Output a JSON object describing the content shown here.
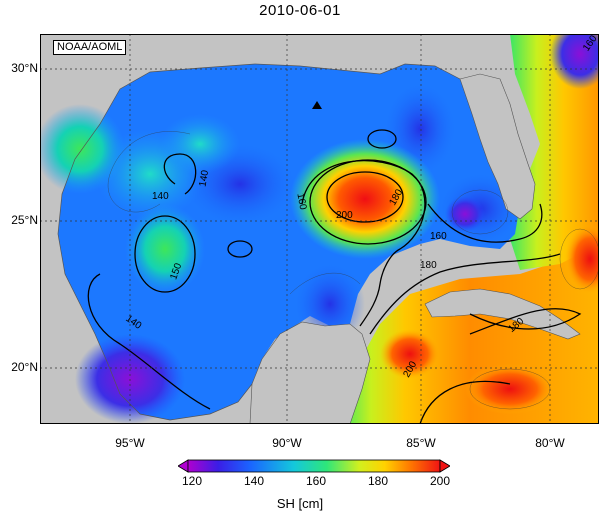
{
  "title": "2010-06-01",
  "credit": "NOAA/AOML",
  "lat_labels": [
    "30°N",
    "25°N",
    "20°N"
  ],
  "lon_labels": [
    "95°W",
    "90°W",
    "85°W",
    "80°W"
  ],
  "contour_labels": [
    "140",
    "140",
    "150",
    "160",
    "160",
    "180",
    "180",
    "200",
    "200",
    "180",
    "140",
    "160"
  ],
  "colorbar": {
    "ticks": [
      "120",
      "140",
      "160",
      "180",
      "200"
    ],
    "title": "SH [cm]",
    "colors": [
      "#b000d0",
      "#3a1ee6",
      "#1a66ff",
      "#14c8dc",
      "#2ee67a",
      "#d2f01e",
      "#ffd200",
      "#ff7a00",
      "#f01414"
    ]
  },
  "colors": {
    "land": "#c3c3c3",
    "low": "#2a3cee",
    "mid": "#1ec8d8",
    "high": "#f01e14"
  }
}
